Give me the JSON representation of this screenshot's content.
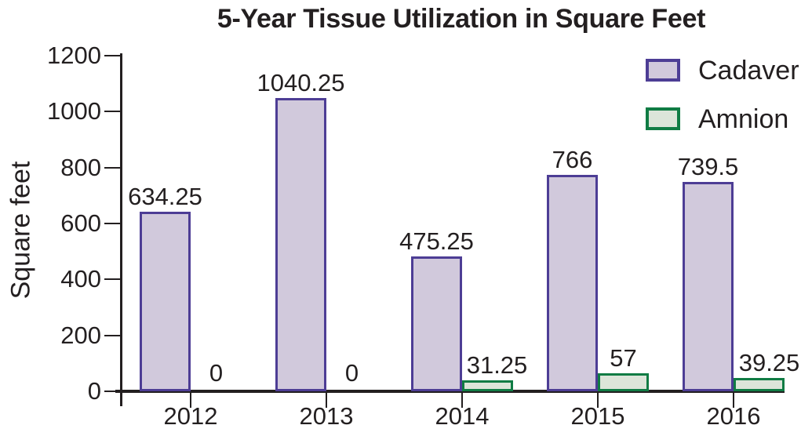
{
  "chart_data": {
    "type": "bar",
    "title": "5-Year Tissue Utilization in Square Feet",
    "xlabel": "",
    "ylabel": "Square feet",
    "categories": [
      "2012",
      "2013",
      "2014",
      "2015",
      "2016"
    ],
    "series": [
      {
        "name": "Cadaver",
        "values": [
          634.25,
          1040.25,
          475.25,
          766,
          739.5
        ],
        "fill_color": "#d1c9dc",
        "border_color": "#4d3d95"
      },
      {
        "name": "Amnion",
        "values": [
          0,
          0,
          31.25,
          57,
          39.25
        ],
        "fill_color": "#dce5d9",
        "border_color": "#107c44"
      }
    ],
    "value_labels": {
      "Cadaver": [
        "634.25",
        "1040.25",
        "475.25",
        "766",
        "739.5"
      ],
      "Amnion": [
        "0",
        "0",
        "31.25",
        "57",
        "39.25"
      ]
    },
    "ylim": [
      0,
      1200
    ],
    "yticks": [
      "0",
      "200",
      "400",
      "600",
      "800",
      "1000",
      "1200"
    ],
    "grid": false,
    "legend_position": "top-right"
  },
  "colors": {
    "text": "#231f20",
    "axis": "#231f20",
    "background": "#ffffff"
  }
}
